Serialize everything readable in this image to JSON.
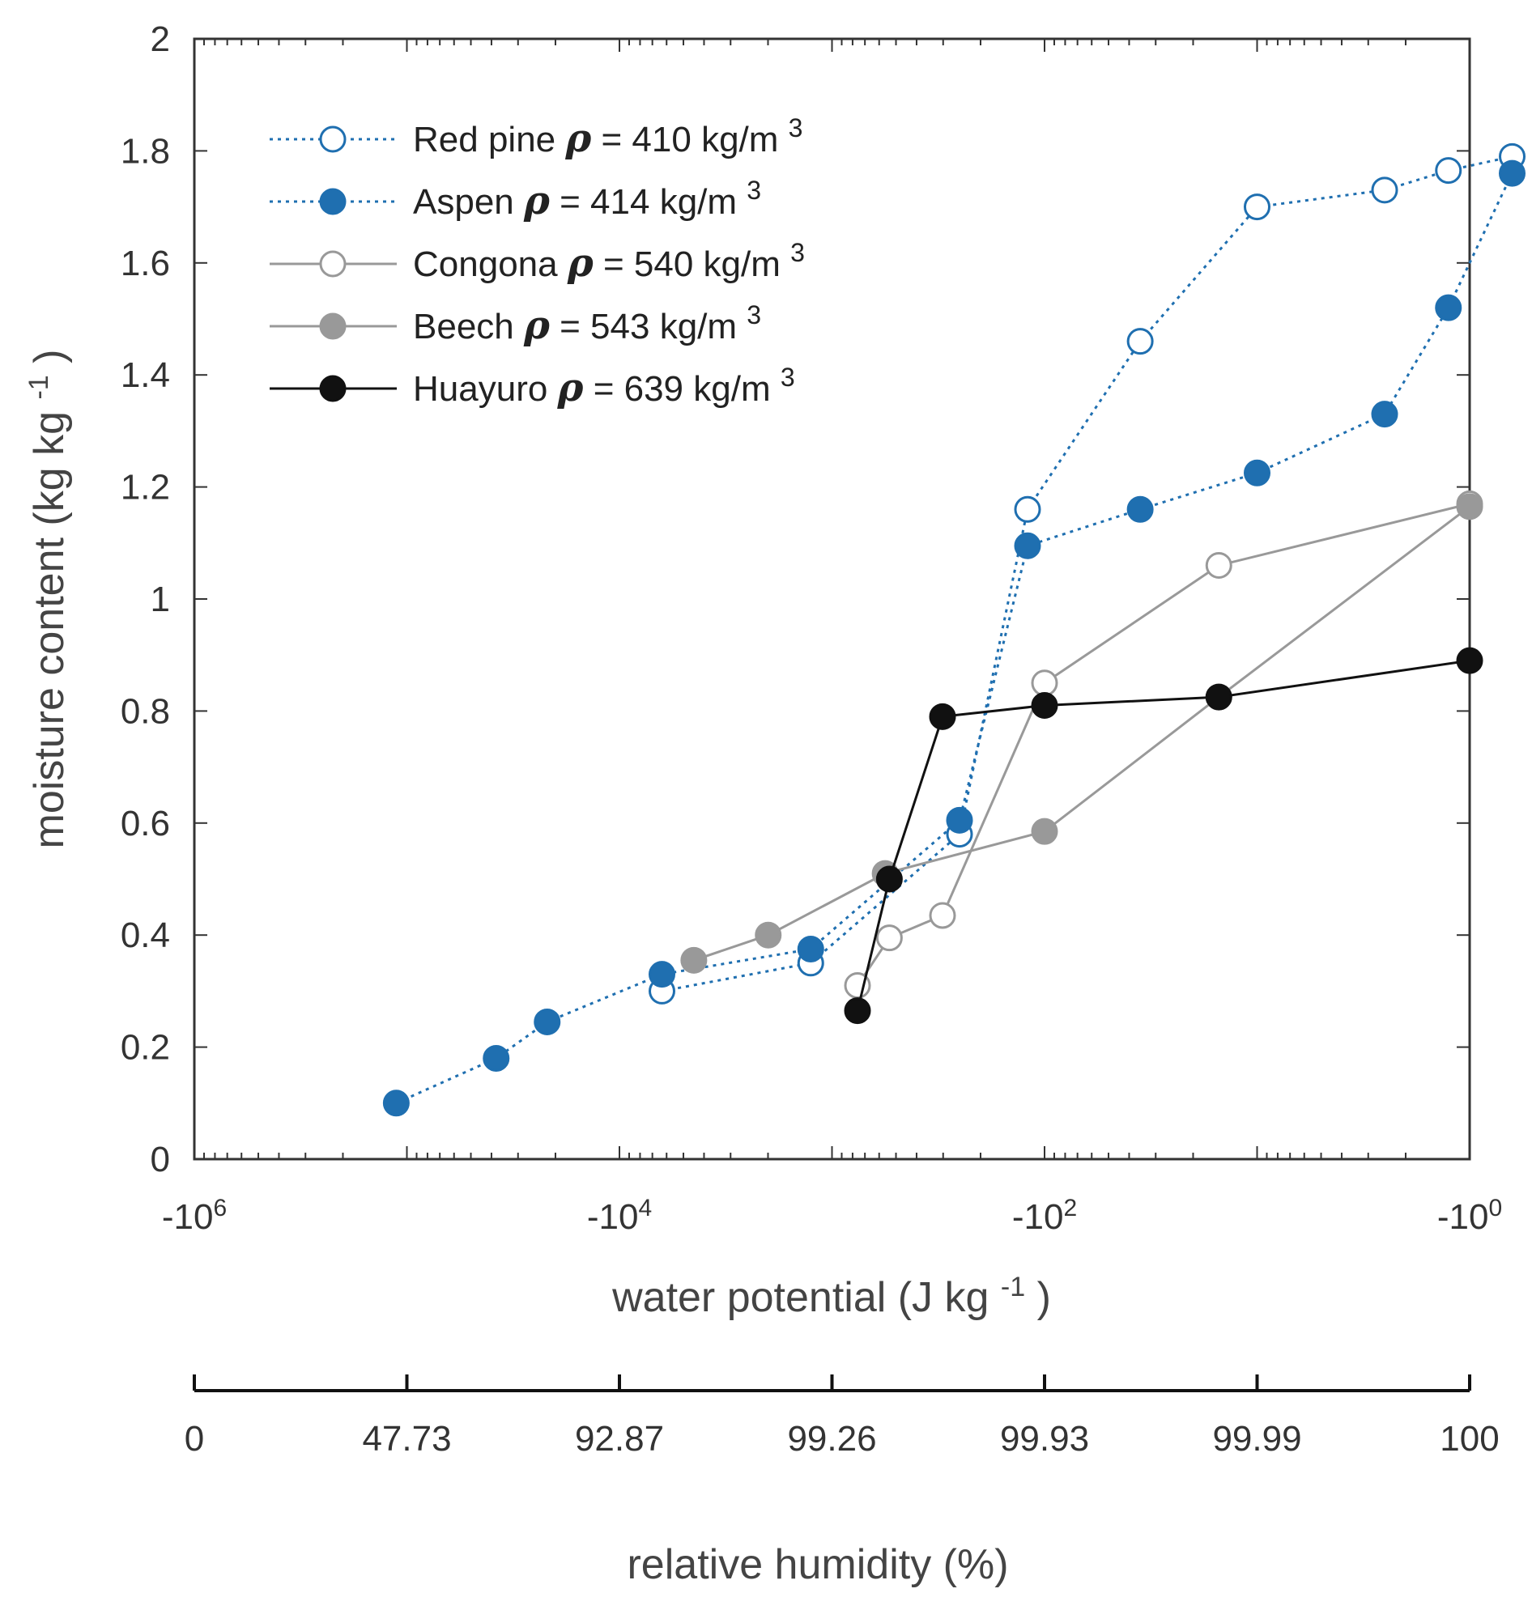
{
  "chart_data": {
    "type": "scatter",
    "title": "",
    "xlabel": "water potential (J kg",
    "xlabel_sup": "-1",
    "xlabel_end": ")",
    "ylabel": "moisture content (kg kg",
    "ylabel_sup": "-1",
    "ylabel_end": ")",
    "x_scale": "log10 of magnitude of negative values",
    "xlim_log10_magnitude": [
      6,
      0
    ],
    "ylim": [
      0,
      2
    ],
    "y_ticks": [
      "0",
      "0.2",
      "0.4",
      "0.6",
      "0.8",
      "1",
      "1.2",
      "1.4",
      "1.6",
      "1.8",
      "2"
    ],
    "x_tick_labels": [
      {
        "base": "-10",
        "exp": "6",
        "log": 6
      },
      {
        "base": "-10",
        "exp": "4",
        "log": 4
      },
      {
        "base": "-10",
        "exp": "2",
        "log": 2
      },
      {
        "base": "-10",
        "exp": "0",
        "log": 0
      }
    ],
    "secondary_axis": {
      "label": "relative humidity (%)",
      "tick_labels": [
        {
          "text": "0",
          "log": 6
        },
        {
          "text": "47.73",
          "log": 5
        },
        {
          "text": "92.87",
          "log": 4
        },
        {
          "text": "99.26",
          "log": 3
        },
        {
          "text": "99.93",
          "log": 2
        },
        {
          "text": "99.99",
          "log": 1
        },
        {
          "text": "100",
          "log": 0
        }
      ]
    },
    "legend_position": "top-left",
    "series": [
      {
        "name": "Red pine",
        "density": "= 410 kg/m",
        "density_exp": "3",
        "color": "#1f6fb0",
        "marker": "open",
        "line": "dotted",
        "log_mag": [
          3.8,
          3.1,
          2.4,
          2.08,
          1.55,
          1.0,
          0.4,
          0.1,
          -0.2
        ],
        "values": [
          0.3,
          0.35,
          0.58,
          1.16,
          1.46,
          1.7,
          1.73,
          1.765,
          1.79
        ]
      },
      {
        "name": "Aspen",
        "density": "= 414 kg/m",
        "density_exp": "3",
        "color": "#1f6fb0",
        "marker": "filled",
        "line": "dotted",
        "log_mag": [
          5.05,
          4.58,
          4.34,
          3.8,
          3.1,
          2.4,
          2.08,
          1.55,
          1.0,
          0.4,
          0.1,
          -0.2
        ],
        "values": [
          0.1,
          0.18,
          0.245,
          0.33,
          0.375,
          0.605,
          1.095,
          1.16,
          1.225,
          1.33,
          1.52,
          1.76
        ]
      },
      {
        "name": "Congona",
        "density": "= 540 kg/m",
        "density_exp": "3",
        "color": "#999999",
        "marker": "open",
        "line": "solid",
        "log_mag": [
          2.88,
          2.73,
          2.48,
          2.0,
          1.18,
          0.0
        ],
        "values": [
          0.31,
          0.395,
          0.435,
          0.85,
          1.06,
          1.17
        ]
      },
      {
        "name": "Beech",
        "density": "= 543 kg/m",
        "density_exp": "3",
        "color": "#999999",
        "marker": "filled",
        "line": "solid",
        "log_mag": [
          3.65,
          3.3,
          2.75,
          2.0,
          1.18,
          0.0
        ],
        "values": [
          0.355,
          0.4,
          0.51,
          0.585,
          0.825,
          1.165
        ]
      },
      {
        "name": "Huayuro",
        "density": "= 639 kg/m",
        "density_exp": "3",
        "color": "#111111",
        "marker": "filled",
        "line": "solid",
        "log_mag": [
          2.88,
          2.73,
          2.48,
          2.0,
          1.18,
          0.0
        ],
        "values": [
          0.265,
          0.5,
          0.79,
          0.81,
          0.825,
          0.89
        ]
      }
    ]
  }
}
